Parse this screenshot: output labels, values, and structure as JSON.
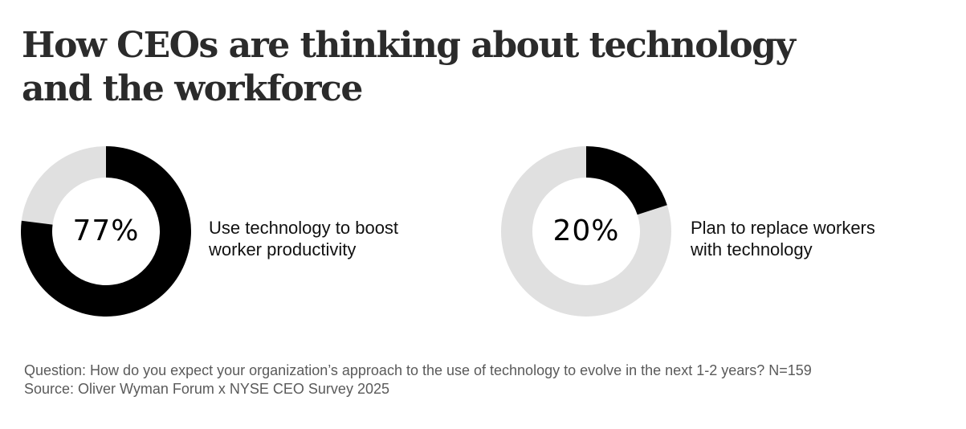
{
  "title_lines": [
    "How CEOs are thinking about technology",
    "and the workforce"
  ],
  "chart_data": [
    {
      "type": "pie",
      "style": "donut",
      "value": 77,
      "value_label": "77%",
      "label_lines": [
        "Use technology to boost",
        "worker productivity"
      ]
    },
    {
      "type": "pie",
      "style": "donut",
      "value": 20,
      "value_label": "20%",
      "label_lines": [
        "Plan to replace workers",
        "with technology"
      ]
    }
  ],
  "colors": {
    "filled": "#000000",
    "remaining": "#e0e0e0"
  },
  "footnote": {
    "question": "Question: How do you expect your organization’s approach to the use of technology to evolve in the next 1-2 years? N=159",
    "source": "Source: Oliver Wyman Forum x NYSE CEO Survey 2025"
  }
}
